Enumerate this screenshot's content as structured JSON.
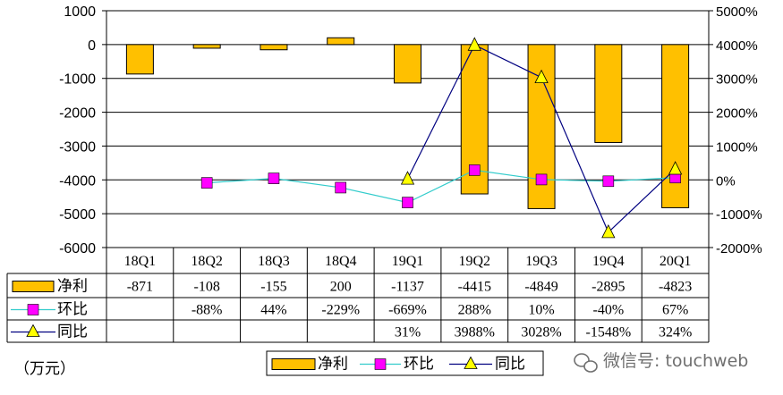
{
  "chart_data": {
    "type": "bar",
    "categories": [
      "18Q1",
      "18Q2",
      "18Q3",
      "18Q4",
      "19Q1",
      "19Q2",
      "19Q3",
      "19Q4",
      "20Q1"
    ],
    "series": [
      {
        "name": "净利",
        "type": "bar",
        "axis": "left",
        "color": "#FFC000",
        "values": [
          -871,
          -108,
          -155,
          200,
          -1137,
          -4415,
          -4849,
          -2895,
          -4823
        ],
        "labels": [
          "-871",
          "-108",
          "-155",
          "200",
          "-1137",
          "-4415",
          "-4849",
          "-2895",
          "-4823"
        ]
      },
      {
        "name": "环比",
        "type": "line",
        "axis": "right",
        "color": "#33CCCC",
        "marker": "square",
        "marker_color": "#FF00FF",
        "values": [
          null,
          -88,
          44,
          -229,
          -669,
          288,
          10,
          -40,
          67
        ],
        "labels": [
          "",
          "-88%",
          "44%",
          "-229%",
          "-669%",
          "288%",
          "10%",
          "-40%",
          "67%"
        ]
      },
      {
        "name": "同比",
        "type": "line",
        "axis": "right",
        "color": "#000080",
        "marker": "triangle",
        "marker_color": "#FFFF00",
        "values": [
          null,
          null,
          null,
          null,
          31,
          3988,
          3028,
          -1548,
          324
        ],
        "labels": [
          "",
          "",
          "",
          "",
          "31%",
          "3988%",
          "3028%",
          "-1548%",
          "324%"
        ]
      }
    ],
    "y_left": {
      "ticks": [
        "1000",
        "0",
        "-1000",
        "-2000",
        "-3000",
        "-4000",
        "-5000",
        "-6000"
      ],
      "ylim": [
        -6000,
        1000
      ]
    },
    "y_right": {
      "ticks": [
        "5000%",
        "4000%",
        "3000%",
        "2000%",
        "1000%",
        "0%",
        "-1000%",
        "-2000%"
      ],
      "ylim": [
        -2000,
        5000
      ]
    },
    "grid": true,
    "legend_position": "bottom"
  },
  "unit_label": "（万元）",
  "watermark": "微信号: touchweb",
  "colors": {
    "bar": "#FFC000",
    "bar_stroke": "#000000",
    "grid": "#000000",
    "ring_line": "#33CCCC",
    "ring_marker": "#FF00FF",
    "yoy_line": "#000080",
    "yoy_marker": "#FFFF00"
  }
}
